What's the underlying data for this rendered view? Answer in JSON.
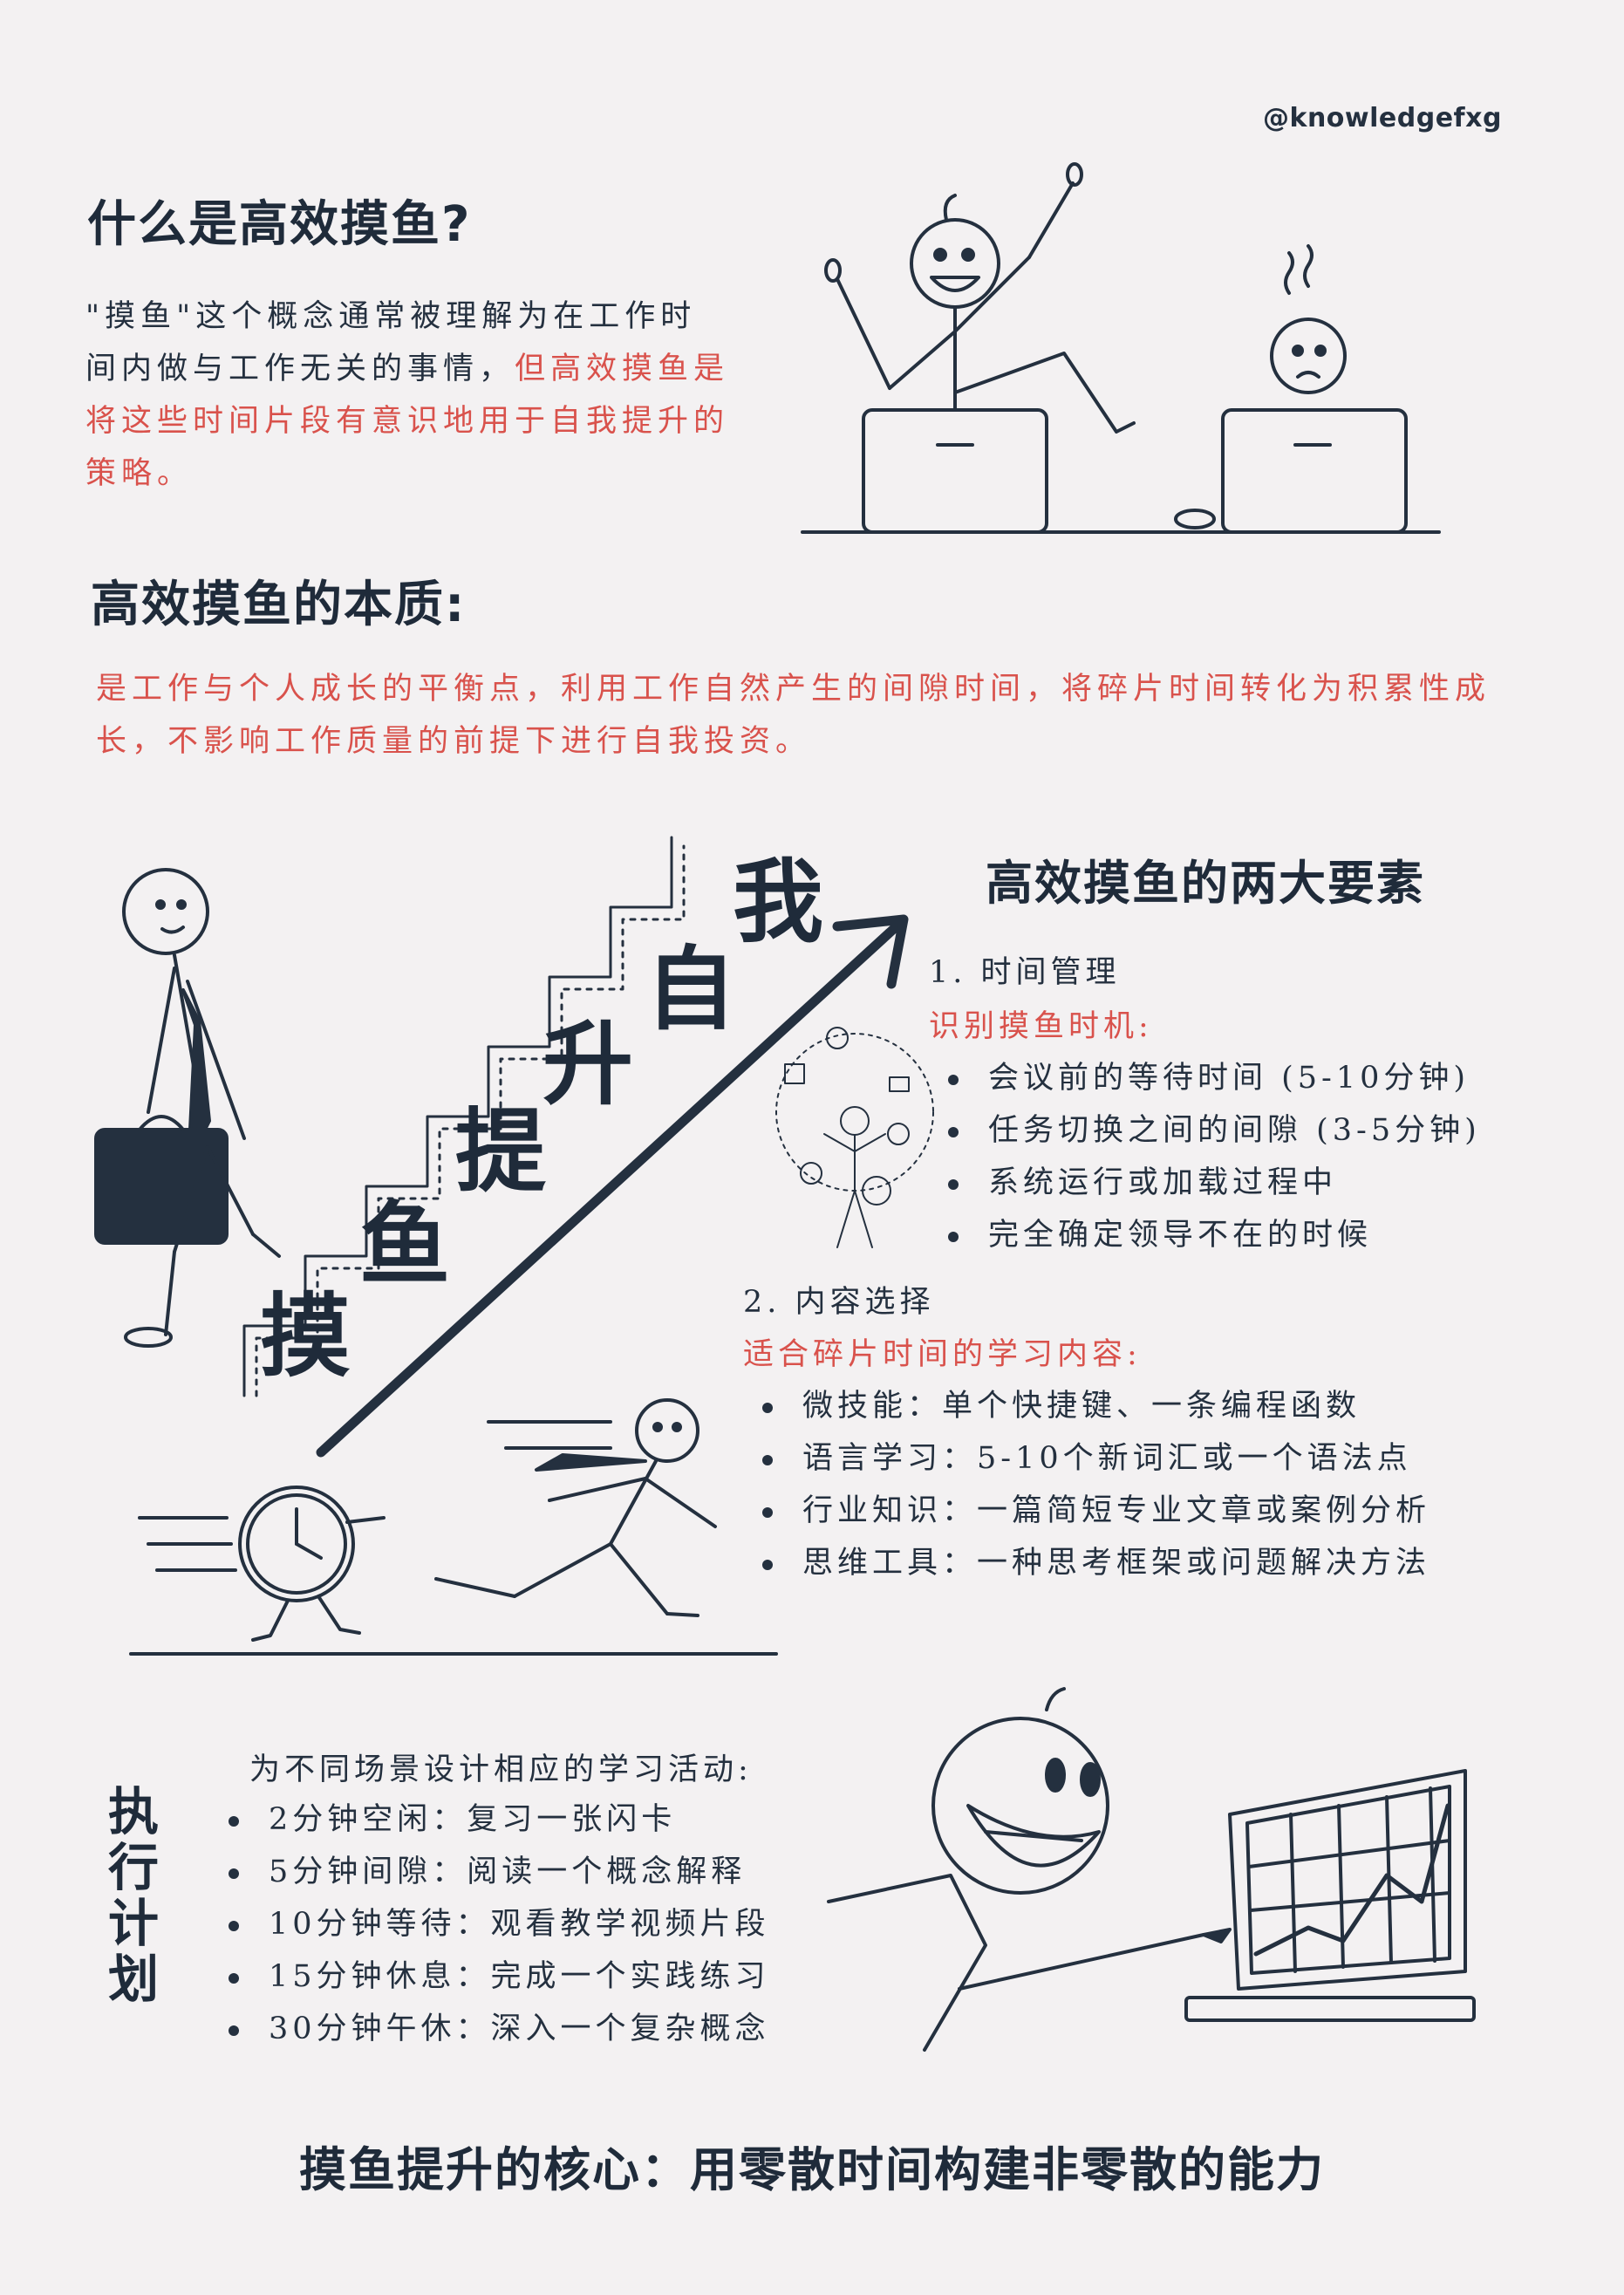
{
  "handle": "@knowledgefxg",
  "section1": {
    "title": "什么是高效摸鱼?",
    "text_plain": "\"摸鱼\"这个概念通常被理解为在工作时间内做与工作无关的事情，",
    "text_highlight": "但高效摸鱼是将这些时间片段有意识地用于自我提升的策略。"
  },
  "section2": {
    "title": "高效摸鱼的本质:",
    "text": "是工作与个人成长的平衡点，利用工作自然产生的间隙时间，将碎片时间转化为积累性成长，不影响工作质量的前提下进行自我投资。"
  },
  "stairs": [
    "摸",
    "鱼",
    "提",
    "升",
    "自",
    "我"
  ],
  "section3": {
    "title": "高效摸鱼的两大要素",
    "element1": {
      "heading": "1. 时间管理",
      "subheading": "识别摸鱼时机:",
      "items": [
        "会议前的等待时间 (5-10分钟)",
        "任务切换之间的间隙 (3-5分钟)",
        "系统运行或加载过程中",
        "完全确定领导不在的时候"
      ]
    },
    "element2": {
      "heading": "2. 内容选择",
      "subheading": "适合碎片时间的学习内容:",
      "items": [
        "微技能：单个快捷键、一条编程函数",
        "语言学习：5-10个新词汇或一个语法点",
        "行业知识：一篇简短专业文章或案例分析",
        "思维工具：一种思考框架或问题解决方法"
      ]
    }
  },
  "section4": {
    "vertical_title": [
      "执",
      "行",
      "计",
      "划"
    ],
    "intro": "为不同场景设计相应的学习活动:",
    "items": [
      "2分钟空闲：复习一张闪卡",
      "5分钟间隙：阅读一个概念解释",
      "10分钟等待：观看教学视频片段",
      "15分钟休息：完成一个实践练习",
      "30分钟午休：深入一个复杂概念"
    ]
  },
  "footer": "摸鱼提升的核心：用零散时间构建非零散的能力",
  "colors": {
    "background": "#f3f1f2",
    "ink": "#24303f",
    "accent_red": "#d9524c"
  },
  "icons": [
    "happy-stickman-laptop-icon",
    "tired-stickman-laptop-icon",
    "stickman-briefcase-icon",
    "rising-arrow-icon",
    "juggling-stickman-icon",
    "clock-chasing-stickman-icon",
    "smiling-stickman-chart-icon"
  ]
}
